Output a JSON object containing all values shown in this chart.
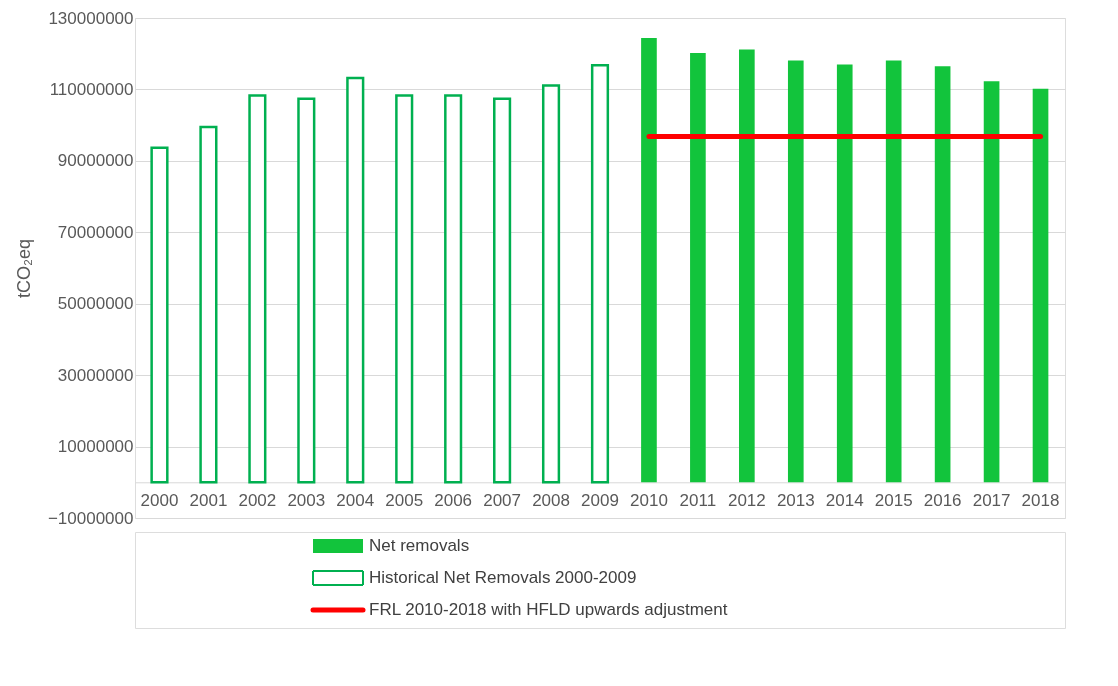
{
  "chart_data": {
    "type": "bar",
    "ylabel": "tCO₂eq",
    "categories": [
      "2000",
      "2001",
      "2002",
      "2003",
      "2004",
      "2005",
      "2006",
      "2007",
      "2008",
      "2009",
      "2010",
      "2011",
      "2012",
      "2013",
      "2014",
      "2015",
      "2016",
      "2017",
      "2018"
    ],
    "series": [
      {
        "name": "Net removals",
        "color": "#12c43c",
        "values": [
          null,
          null,
          null,
          null,
          null,
          null,
          null,
          null,
          null,
          null,
          124400000,
          120200000,
          121200000,
          118100000,
          117000000,
          118100000,
          116500000,
          112300000,
          110200000
        ]
      },
      {
        "name": "Historical Net Removals 2000-2009",
        "line_style": "solid",
        "color": "#00b050",
        "values": [
          93700000,
          99500000,
          108300000,
          107400000,
          113200000,
          108300000,
          108300000,
          107400000,
          111100000,
          116800000,
          null,
          null,
          null,
          null,
          null,
          null,
          null,
          null,
          null
        ]
      },
      {
        "name": "FRL 2010-2018 with HFLD upwards adjustment",
        "type": "line",
        "color": "#ff0000",
        "values": [
          null,
          null,
          null,
          null,
          null,
          null,
          null,
          null,
          null,
          null,
          96800000,
          96800000,
          96800000,
          96800000,
          96800000,
          96800000,
          96800000,
          96800000,
          96800000
        ]
      }
    ],
    "ylim": [
      -10000000,
      130000000
    ],
    "yticks": [
      -10000000,
      10000000,
      30000000,
      50000000,
      70000000,
      90000000,
      110000000,
      130000000
    ],
    "grid": "y",
    "legend": "bottom"
  }
}
